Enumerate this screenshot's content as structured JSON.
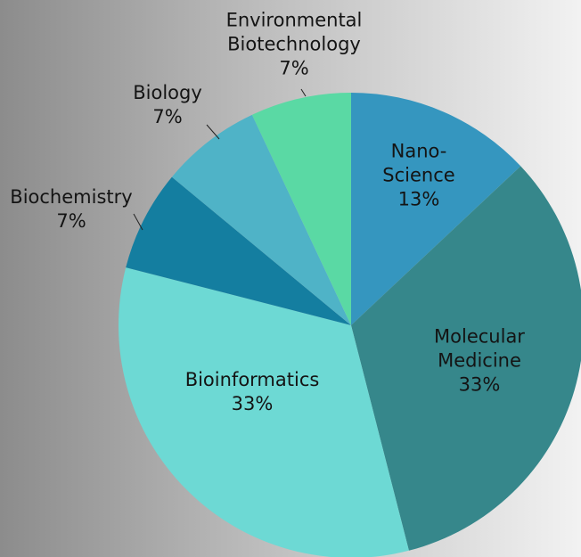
{
  "chart_data": {
    "type": "pie",
    "categories": [
      "Nano-Science",
      "Molecular Medicine",
      "Bioinformatics",
      "Biochemistry",
      "Biology",
      "Environmental Biotechnology"
    ],
    "values": [
      13,
      33,
      33,
      7,
      7,
      7
    ],
    "value_labels": [
      "13%",
      "33%",
      "33%",
      "7%",
      "7%",
      "7%"
    ],
    "colors": [
      "#3596bf",
      "#36878b",
      "#6dd9d4",
      "#147ea0",
      "#4fb3c7",
      "#5ad9a4"
    ]
  }
}
